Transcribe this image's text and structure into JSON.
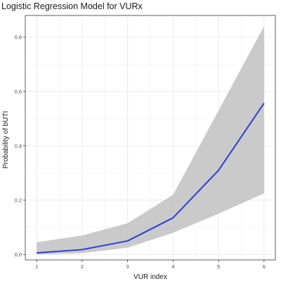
{
  "chart_data": {
    "type": "line",
    "title": "Logistic Regression Model for VURx",
    "xlabel": "VUR index",
    "ylabel": "Probability of bUTI",
    "x": [
      1,
      2,
      3,
      4,
      5,
      6
    ],
    "series": [
      {
        "values": [
          0.006,
          0.018,
          0.05,
          0.135,
          0.31,
          0.557
        ],
        "lower": [
          0.0,
          0.005,
          0.025,
          0.08,
          0.15,
          0.225
        ],
        "upper": [
          0.045,
          0.07,
          0.115,
          0.22,
          0.53,
          0.84
        ]
      }
    ],
    "xticks": [
      "1",
      "2",
      "3",
      "4",
      "5",
      "6"
    ],
    "yticks": [
      "0.0",
      "0.2",
      "0.4",
      "0.6",
      "0.8"
    ],
    "xlim": [
      0.75,
      6.25
    ],
    "ylim": [
      -0.02,
      0.88
    ],
    "grid": true,
    "legend": "none",
    "colors": {
      "line": "#2a3fd6",
      "band": "#bdbdbd",
      "grid": "#ebebeb",
      "panel_border": "#333333"
    }
  }
}
